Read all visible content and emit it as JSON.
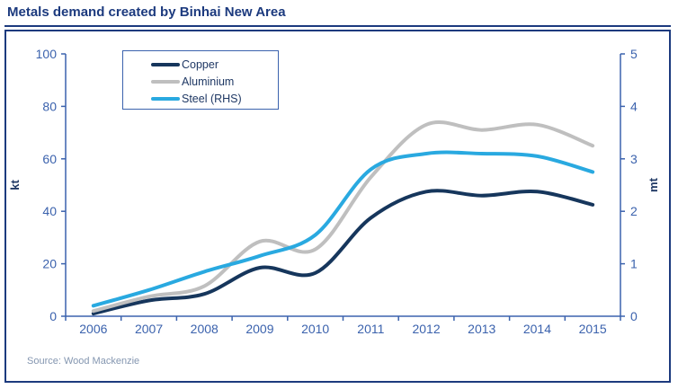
{
  "page": {
    "title": "Metals demand created by Binhai New Area",
    "source": "Source: Wood Mackenzie"
  },
  "colors": {
    "title": "#1c3a7e",
    "axis": "#3b62ad",
    "axis_title": "#1f3864",
    "legend_text": "#1f3864",
    "source_text": "#8496b0",
    "copper": "#16365c",
    "aluminium": "#bfbfbf",
    "steel": "#29a9e0"
  },
  "chart_data": {
    "type": "line",
    "title": "Metals demand created by Binhai New Area",
    "smooth": true,
    "grid": false,
    "legend_position": "top-left-inside",
    "categories": [
      "2006",
      "2007",
      "2008",
      "2009",
      "2010",
      "2011",
      "2012",
      "2013",
      "2014",
      "2015"
    ],
    "series": [
      {
        "name": "Copper",
        "axis": "left",
        "unit": "kt",
        "color": "#16365c",
        "values": [
          1,
          6,
          8.5,
          18.5,
          16.5,
          37.5,
          47.5,
          46,
          47.5,
          42.5
        ]
      },
      {
        "name": "Aluminium",
        "axis": "left",
        "unit": "kt",
        "color": "#bfbfbf",
        "values": [
          2,
          7.5,
          11.5,
          28.5,
          25.5,
          53,
          73,
          71,
          73,
          65
        ]
      },
      {
        "name": "Steel (RHS)",
        "axis": "right",
        "unit": "mt",
        "color": "#29a9e0",
        "values": [
          0.2,
          0.5,
          0.85,
          1.15,
          1.55,
          2.8,
          3.1,
          3.1,
          3.05,
          2.75
        ]
      }
    ],
    "left_axis": {
      "label": "kt",
      "min": 0,
      "max": 100,
      "ticks": [
        0,
        20,
        40,
        60,
        80,
        100
      ]
    },
    "right_axis": {
      "label": "mt",
      "min": 0,
      "max": 5,
      "ticks": [
        0,
        1,
        2,
        3,
        4,
        5
      ]
    }
  }
}
